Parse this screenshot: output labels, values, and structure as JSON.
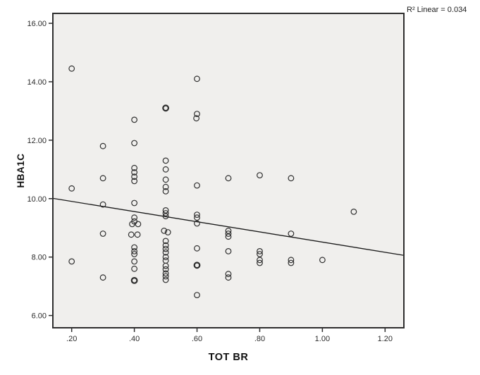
{
  "annotation": {
    "r2_label": "R²  Linear = 0.034"
  },
  "colors": {
    "canvas_bg": "#ffffff",
    "plot_bg": "#f0efed",
    "border": "#2e2e2e",
    "marker": "#2e2e2e",
    "fit_line": "#1a1a1a",
    "tick_text": "#2b2b2b"
  },
  "chart_data": {
    "type": "scatter",
    "title": "",
    "xlabel": "TOT BR",
    "ylabel": "HBA1C",
    "legend": null,
    "grid": false,
    "x_tick_labels": [
      ".20",
      ".40",
      ".60",
      ".80",
      "1.00",
      "1.20"
    ],
    "x_tick_values": [
      0.2,
      0.4,
      0.6,
      0.8,
      1.0,
      1.2
    ],
    "y_tick_labels": [
      "6.00",
      "8.00",
      "10.00",
      "12.00",
      "14.00",
      "16.00"
    ],
    "y_tick_values": [
      6,
      8,
      10,
      12,
      14,
      16
    ],
    "xlim": [
      0.14,
      1.26
    ],
    "ylim": [
      5.58,
      16.34
    ],
    "r_squared": 0.034,
    "fit_line": {
      "x1": 0.14,
      "y1": 10.01,
      "x2": 1.26,
      "y2": 8.06
    },
    "points": [
      [
        0.2,
        14.45
      ],
      [
        0.2,
        10.35
      ],
      [
        0.2,
        7.85
      ],
      [
        0.3,
        11.8
      ],
      [
        0.3,
        10.7
      ],
      [
        0.3,
        9.8
      ],
      [
        0.3,
        8.8
      ],
      [
        0.3,
        7.3
      ],
      [
        0.4,
        12.7
      ],
      [
        0.4,
        11.9
      ],
      [
        0.4,
        11.05
      ],
      [
        0.4,
        10.9
      ],
      [
        0.4,
        10.75
      ],
      [
        0.4,
        10.6
      ],
      [
        0.4,
        9.85
      ],
      [
        0.4,
        9.35
      ],
      [
        0.4,
        9.22
      ],
      [
        0.393,
        9.13
      ],
      [
        0.412,
        9.13
      ],
      [
        0.39,
        8.77
      ],
      [
        0.41,
        8.77
      ],
      [
        0.4,
        8.33
      ],
      [
        0.4,
        8.2
      ],
      [
        0.4,
        8.1
      ],
      [
        0.4,
        7.85
      ],
      [
        0.4,
        7.6
      ],
      [
        0.4,
        7.2,
        1
      ],
      [
        0.5,
        13.1,
        1
      ],
      [
        0.5,
        11.3
      ],
      [
        0.5,
        11.0
      ],
      [
        0.5,
        10.65
      ],
      [
        0.5,
        10.4
      ],
      [
        0.5,
        10.25
      ],
      [
        0.5,
        9.6
      ],
      [
        0.5,
        9.5
      ],
      [
        0.5,
        9.4
      ],
      [
        0.495,
        8.9
      ],
      [
        0.507,
        8.85
      ],
      [
        0.5,
        8.55
      ],
      [
        0.5,
        8.4
      ],
      [
        0.5,
        8.28
      ],
      [
        0.5,
        8.16
      ],
      [
        0.5,
        8.0
      ],
      [
        0.5,
        7.88
      ],
      [
        0.5,
        7.7
      ],
      [
        0.5,
        7.58
      ],
      [
        0.5,
        7.44
      ],
      [
        0.5,
        7.34
      ],
      [
        0.5,
        7.22
      ],
      [
        0.6,
        14.1
      ],
      [
        0.6,
        12.9
      ],
      [
        0.598,
        12.75
      ],
      [
        0.6,
        10.45
      ],
      [
        0.6,
        9.45
      ],
      [
        0.6,
        9.35
      ],
      [
        0.6,
        9.15
      ],
      [
        0.6,
        8.3
      ],
      [
        0.6,
        7.72,
        1
      ],
      [
        0.6,
        6.7
      ],
      [
        0.7,
        10.7
      ],
      [
        0.7,
        8.9
      ],
      [
        0.7,
        8.8
      ],
      [
        0.7,
        8.7
      ],
      [
        0.7,
        8.2
      ],
      [
        0.7,
        7.42
      ],
      [
        0.7,
        7.3
      ],
      [
        0.8,
        10.8
      ],
      [
        0.8,
        8.2
      ],
      [
        0.8,
        8.1
      ],
      [
        0.8,
        7.9
      ],
      [
        0.8,
        7.8
      ],
      [
        0.9,
        10.7
      ],
      [
        0.9,
        8.8
      ],
      [
        0.9,
        7.9
      ],
      [
        0.9,
        7.8
      ],
      [
        1.0,
        7.9
      ],
      [
        1.1,
        9.55
      ]
    ]
  }
}
